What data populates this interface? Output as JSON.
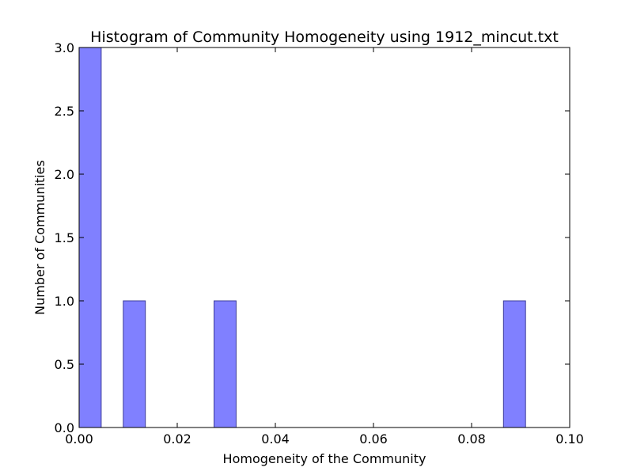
{
  "chart_data": {
    "type": "bar",
    "title": "Histogram of Community Homogeneity using 1912_mincut.txt",
    "xlabel": "Homogeneity of the Community",
    "ylabel": "Number of Communities",
    "xlim": [
      0.0,
      0.1
    ],
    "ylim": [
      0.0,
      3.0
    ],
    "xticks": [
      "0.00",
      "0.02",
      "0.04",
      "0.06",
      "0.08",
      "0.10"
    ],
    "yticks": [
      "0.0",
      "0.5",
      "1.0",
      "1.5",
      "2.0",
      "2.5",
      "3.0"
    ],
    "bins": [
      {
        "x0": 0.0,
        "x1": 0.0045,
        "count": 3
      },
      {
        "x0": 0.009,
        "x1": 0.0135,
        "count": 1
      },
      {
        "x0": 0.0275,
        "x1": 0.032,
        "count": 1
      },
      {
        "x0": 0.0865,
        "x1": 0.091,
        "count": 1
      }
    ],
    "bar_color": "#8080ff",
    "bar_edge_color": "#3c3c99",
    "grid": false
  }
}
